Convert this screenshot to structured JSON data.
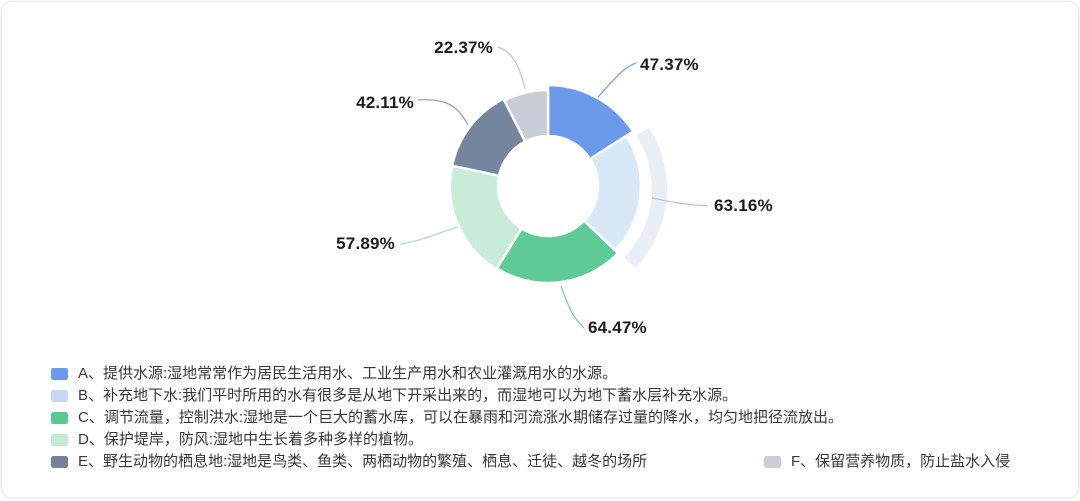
{
  "chart_data": {
    "type": "pie",
    "subtype": "donut",
    "title": "",
    "unit": "%",
    "grid": false,
    "legend_position": "bottom",
    "categories": [
      "A",
      "B",
      "C",
      "D",
      "E",
      "F"
    ],
    "values": [
      47.37,
      63.16,
      64.47,
      57.89,
      42.11,
      22.37
    ],
    "labels": [
      "47.37%",
      "63.16%",
      "64.47%",
      "57.89%",
      "42.11%",
      "22.37%"
    ],
    "colors": [
      "#6c99e9",
      "#d9e8f7",
      "#5ecb96",
      "#c9ebd9",
      "#76859e",
      "#c8ccd7"
    ],
    "legend_colors": [
      "#6c99e9",
      "#c5d7f5",
      "#58ca90",
      "#c3ead3",
      "#73829d",
      "#c9ced9"
    ],
    "leader_colors": [
      "#7da1ec",
      "#b9c3e8",
      "#79ccaa",
      "#b3dfc9",
      "#9aa1b1",
      "#c2c6d0"
    ],
    "label_color": "#1b1b20",
    "highlight": {
      "slice": "B",
      "color": "#eceef7"
    },
    "legend_items": [
      {
        "key": "A",
        "text": "A、提供水源:湿地常常作为居民生活用水、工业生产用水和农业灌溉用水的水源。"
      },
      {
        "key": "B",
        "text": "B、补充地下水:我们平时所用的水有很多是从地下开采出来的，而湿地可以为地下蓄水层补充水源。"
      },
      {
        "key": "C",
        "text": "C、调节流量，控制洪水:湿地是一个巨大的蓄水库，可以在暴雨和河流涨水期储存过量的降水，均匀地把径流放出。"
      },
      {
        "key": "D",
        "text": "D、保护堤岸，防风:湿地中生长着多种多样的植物。"
      },
      {
        "key": "E",
        "text": "E、野生动物的栖息地:湿地是鸟类、鱼类、两栖动物的繁殖、栖息、迁徒、越冬的场所"
      },
      {
        "key": "F",
        "text": "F、保留营养物质，防止盐水入侵"
      }
    ]
  }
}
